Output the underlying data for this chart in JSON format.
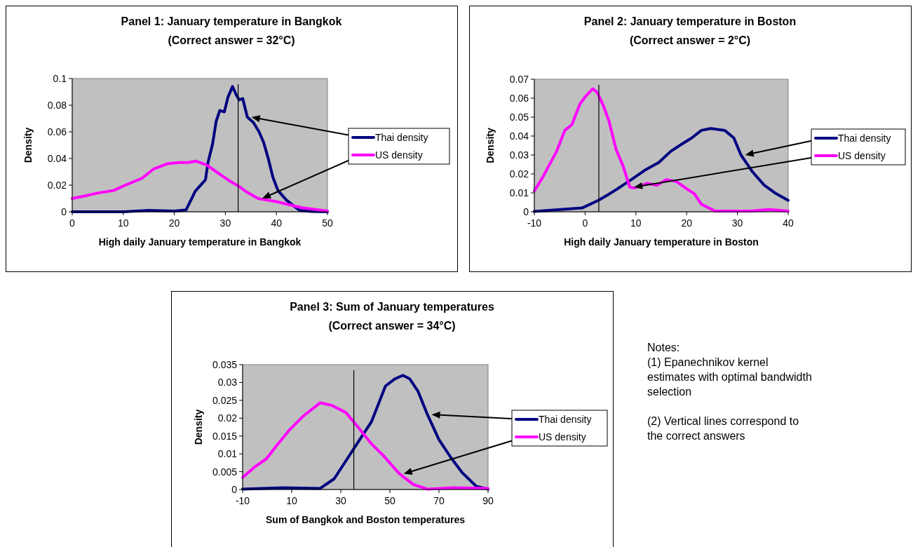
{
  "chart_data": [
    {
      "type": "line",
      "title": "Panel 1:  January temperature in Bangkok",
      "subtitle": "(Correct answer = 32°C)",
      "xlabel": "High daily January temperature in Bangkok",
      "ylabel": "Density",
      "xlim": [
        0,
        50
      ],
      "xticks": [
        0,
        10,
        20,
        30,
        40,
        50
      ],
      "ylim": [
        0,
        0.1
      ],
      "yticks": [
        0,
        0.02,
        0.04,
        0.06,
        0.08,
        0.1
      ],
      "legend": "right",
      "marker": "none",
      "ref_lines": [
        {
          "axis": "x",
          "value": 32.5,
          "color": "#000000"
        }
      ],
      "series": [
        {
          "name": "Thai density",
          "color": "#000080",
          "x": [
            0,
            10,
            15,
            20,
            22.3,
            24.1,
            26.1,
            26.6,
            27.5,
            28.2,
            28.9,
            29.8,
            30.5,
            31.4,
            32.1,
            32.7,
            33.4,
            34.3,
            35.5,
            36.6,
            37.5,
            38.4,
            39.3,
            40.3,
            41.9,
            43.5,
            44.6,
            46.9,
            50
          ],
          "values": [
            0,
            0,
            0.001,
            0.0005,
            0.0014,
            0.0155,
            0.024,
            0.037,
            0.051,
            0.068,
            0.076,
            0.075,
            0.086,
            0.094,
            0.088,
            0.084,
            0.085,
            0.071,
            0.067,
            0.06,
            0.052,
            0.04,
            0.026,
            0.016,
            0.009,
            0.004,
            0.001,
            0.0003,
            0
          ]
        },
        {
          "name": "US density",
          "color": "#ff00ff",
          "x": [
            0,
            2.6,
            4.9,
            8.1,
            10.4,
            13.6,
            15.9,
            18.6,
            20.9,
            22.7,
            24.3,
            26.4,
            28.6,
            30.9,
            32.7,
            34.1,
            36.4,
            40,
            42.8,
            45,
            50
          ],
          "values": [
            0.01,
            0.012,
            0.014,
            0.016,
            0.02,
            0.025,
            0.032,
            0.036,
            0.037,
            0.037,
            0.038,
            0.035,
            0.029,
            0.023,
            0.019,
            0.015,
            0.01,
            0.0076,
            0.005,
            0.003,
            0.0005
          ]
        }
      ]
    },
    {
      "type": "line",
      "title": "Panel 2:  January temperature in Boston",
      "subtitle": "(Correct answer = 2°C)",
      "xlabel": "High daily January temperature in Boston",
      "ylabel": "Density",
      "xlim": [
        -10,
        40
      ],
      "xticks": [
        -10,
        0,
        10,
        20,
        30,
        40
      ],
      "ylim": [
        0,
        0.07
      ],
      "yticks": [
        0,
        0.01,
        0.02,
        0.03,
        0.04,
        0.05,
        0.06,
        0.07
      ],
      "legend": "right",
      "marker": "none",
      "ref_lines": [
        {
          "axis": "x",
          "value": 2.7,
          "color": "#000000"
        }
      ],
      "series": [
        {
          "name": "Thai density",
          "color": "#000080",
          "x": [
            -10,
            -0.6,
            2.6,
            4.5,
            6.3,
            9.1,
            11.8,
            14.5,
            16.9,
            19.2,
            21,
            22.9,
            24.7,
            27.5,
            29.3,
            30.7,
            33,
            35.3,
            37.6,
            40
          ],
          "values": [
            0.0002,
            0.002,
            0.006,
            0.009,
            0.012,
            0.017,
            0.022,
            0.026,
            0.032,
            0.036,
            0.039,
            0.043,
            0.044,
            0.043,
            0.039,
            0.03,
            0.021,
            0.014,
            0.0096,
            0.006
          ]
        },
        {
          "name": "US density",
          "color": "#ff00ff",
          "x": [
            -10,
            -8.4,
            -5.6,
            -4,
            -2.6,
            -1,
            0.1,
            1.5,
            2.4,
            3.6,
            4.7,
            6.1,
            7.5,
            8.8,
            9.8,
            12.3,
            14.1,
            16,
            18,
            20.1,
            21.5,
            22.9,
            25.6,
            32.5,
            36.2,
            40
          ],
          "values": [
            0.011,
            0.018,
            0.032,
            0.043,
            0.046,
            0.057,
            0.061,
            0.065,
            0.063,
            0.056,
            0.048,
            0.033,
            0.024,
            0.013,
            0.0126,
            0.015,
            0.014,
            0.017,
            0.016,
            0.012,
            0.0096,
            0.004,
            0.0004,
            0.0004,
            0.0012,
            0.0004
          ]
        }
      ]
    },
    {
      "type": "line",
      "title": "Panel 3:  Sum of January temperatures",
      "subtitle": "(Correct answer = 34°C)",
      "xlabel": "Sum of Bangkok and Boston temperatures",
      "ylabel": "Density",
      "xlim": [
        -10,
        90
      ],
      "xticks": [
        -10,
        10,
        30,
        50,
        70,
        90
      ],
      "ylim": [
        0,
        0.035
      ],
      "yticks": [
        0,
        0.005,
        0.01,
        0.015,
        0.02,
        0.025,
        0.03,
        0.035
      ],
      "legend": "right",
      "marker": "none",
      "ref_lines": [
        {
          "axis": "x",
          "value": 35.3,
          "color": "#000000"
        }
      ],
      "series": [
        {
          "name": "Thai density",
          "color": "#000080",
          "x": [
            -10,
            6.3,
            21.6,
            27.3,
            33,
            37.7,
            42.5,
            48.2,
            52,
            55.3,
            58.1,
            61.5,
            65.3,
            70,
            74.8,
            79.5,
            85.2,
            90
          ],
          "values": [
            0.0001,
            0.0005,
            0.0003,
            0.003,
            0.009,
            0.014,
            0.019,
            0.029,
            0.031,
            0.032,
            0.031,
            0.0275,
            0.021,
            0.014,
            0.009,
            0.0047,
            0.0009,
            0.0001
          ]
        },
        {
          "name": "US density",
          "color": "#ff00ff",
          "x": [
            -10,
            -5.1,
            -0.3,
            3.5,
            9.2,
            14.9,
            21.6,
            26.3,
            32,
            36.8,
            42.5,
            47.2,
            53.9,
            59.6,
            65.3,
            75.7,
            90
          ],
          "values": [
            0.0034,
            0.0063,
            0.0086,
            0.012,
            0.0168,
            0.0207,
            0.0243,
            0.0236,
            0.0216,
            0.0177,
            0.0128,
            0.0096,
            0.0044,
            0.0014,
            0.0001,
            0.0005,
            0.0003
          ]
        }
      ]
    },
    {
      "type": "other",
      "annotations": [
        "Notes:",
        "(1) Epanechnikov kernel estimates with optimal bandwidth selection",
        "(2) Vertical lines correspond to the correct answers"
      ]
    }
  ]
}
